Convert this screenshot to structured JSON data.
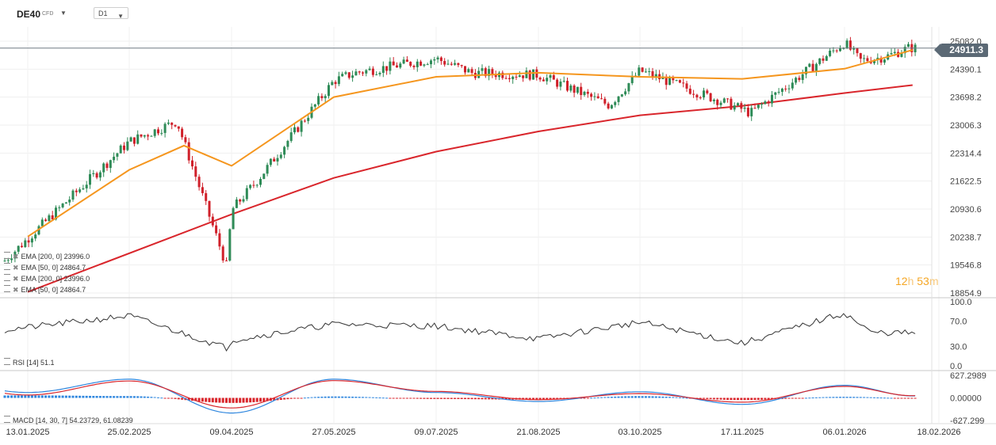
{
  "toolbar": {
    "symbol": "DE40",
    "symbol_type": "CFD",
    "timeframe": "D1"
  },
  "indicators": {
    "ema200_a": "EMA [200, 0]  23996.0",
    "ema50_a": "EMA [50, 0]  24864.7",
    "ema200_b": "EMA [200, 0]  23996.0",
    "ema50_b": "EMA [50, 0]  24864.7",
    "rsi": "RSI [14]  51.1",
    "macd": "MACD [14, 30, 7]  54.23729,  61.08239"
  },
  "countdown": {
    "hours": "12",
    "h_unit": "h",
    "minutes": "53",
    "m_unit": "m"
  },
  "current_price": "24911.3",
  "colors": {
    "up": "#2e8b57",
    "down": "#d0202a",
    "ema50": "#f5961e",
    "ema200": "#d9262c",
    "macd_line": "#2e86de",
    "signal_line": "#d9262c"
  },
  "chart_data": [
    {
      "type": "candlestick",
      "title": "DE40 D1",
      "y_ticks": [
        "25082.0",
        "24390.1",
        "23698.2",
        "23006.3",
        "22314.4",
        "21622.5",
        "20930.6",
        "20238.7",
        "19546.8",
        "18854.9"
      ],
      "ylim": [
        18854.9,
        25082.0
      ],
      "x_ticks": [
        "13.01.2025",
        "25.02.2025",
        "09.04.2025",
        "27.05.2025",
        "09.07.2025",
        "21.08.2025",
        "03.10.2025",
        "17.11.2025",
        "06.01.2026",
        "18.02.2026"
      ],
      "close_series": {
        "x": [
          "13.01.2025",
          "25.02.2025",
          "17.03.2025",
          "07.04.2025",
          "09.04.2025",
          "22.04.2025",
          "27.05.2025",
          "05.06.2025",
          "09.07.2025",
          "24.07.2025",
          "21.08.2025",
          "20.09.2025",
          "03.10.2025",
          "17.11.2025",
          "21.11.2025",
          "06.01.2026",
          "13.01.2026",
          "25.01.2026",
          "04.02.2026"
        ],
        "close": [
          20200,
          22600,
          23100,
          19500,
          20900,
          21700,
          24100,
          24300,
          24650,
          24300,
          24250,
          23500,
          24350,
          23400,
          23300,
          25050,
          24600,
          24700,
          24911.3
        ]
      },
      "series": [
        {
          "name": "EMA [200, 0]",
          "x": [
            "13.01.2025",
            "09.04.2025",
            "27.05.2025",
            "09.07.2025",
            "21.08.2025",
            "03.10.2025",
            "17.11.2025",
            "06.01.2026",
            "06.02.2026"
          ],
          "values": [
            18880,
            20800,
            21700,
            22350,
            22850,
            23250,
            23480,
            23800,
            23996.0
          ]
        },
        {
          "name": "EMA [50, 0]",
          "x": [
            "13.01.2025",
            "25.02.2025",
            "20.03.2025",
            "09.04.2025",
            "27.05.2025",
            "09.07.2025",
            "21.08.2025",
            "03.10.2025",
            "17.11.2025",
            "06.01.2026",
            "06.02.2026"
          ],
          "values": [
            20250,
            21900,
            22500,
            22000,
            23700,
            24200,
            24300,
            24200,
            24150,
            24400,
            24864.7
          ]
        }
      ],
      "last_price": 24911.3
    },
    {
      "type": "line",
      "title": "RSI [14]",
      "y_ticks": [
        "100.0",
        "70.0",
        "30.0",
        "0.0"
      ],
      "ylim": [
        0,
        100
      ],
      "x": [
        "13.01.2025",
        "25.02.2025",
        "07.04.2025",
        "09.04.2025",
        "27.05.2025",
        "09.07.2025",
        "21.08.2025",
        "03.10.2025",
        "17.11.2025",
        "06.01.2026",
        "18.01.2026",
        "06.02.2026"
      ],
      "values": [
        60,
        78,
        28,
        40,
        65,
        62,
        42,
        68,
        35,
        82,
        52,
        51.1
      ]
    },
    {
      "type": "line",
      "title": "MACD [14, 30, 7]",
      "y_ticks": [
        "627.2989",
        "0.00000",
        "-627.299"
      ],
      "ylim": [
        -627.299,
        627.2989
      ],
      "x": [
        "13.01.2025",
        "25.02.2025",
        "09.04.2025",
        "27.05.2025",
        "09.07.2025",
        "21.08.2025",
        "03.10.2025",
        "17.11.2025",
        "06.01.2026",
        "06.02.2026"
      ],
      "series": [
        {
          "name": "MACD",
          "values": [
            150,
            520,
            -420,
            520,
            150,
            -100,
            170,
            -180,
            350,
            54.23729
          ]
        },
        {
          "name": "Signal",
          "values": [
            80,
            470,
            -280,
            480,
            180,
            -50,
            120,
            -120,
            320,
            61.08239
          ]
        },
        {
          "name": "Histogram",
          "values": [
            70,
            50,
            -140,
            40,
            -30,
            -50,
            50,
            -60,
            30,
            -6.8451
          ]
        }
      ]
    }
  ]
}
